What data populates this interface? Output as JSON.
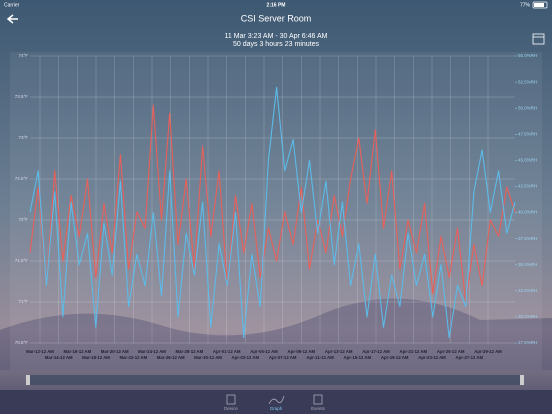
{
  "status_bar": {
    "carrier": "Carrier",
    "time": "2:16 PM",
    "battery": "77%"
  },
  "nav": {
    "title": "CSI Server Room",
    "range": "11 Mar 3:23 AM - 30 Apr 6:46 AM",
    "duration": "50 days 3 hours 23 minutes"
  },
  "chart_data": {
    "type": "line",
    "xticks": [
      "Mar-12-12 AM",
      "Mar-14-12 AM",
      "Mar-16-12 AM",
      "Mar-18-12 AM",
      "Mar-20-12 AM",
      "Mar-22-12 AM",
      "Mar-24-12 AM",
      "Mar-26-12 AM",
      "Mar-28-12 AM",
      "Mar-30-12 AM",
      "Apr-01-12 AM",
      "Apr-03-12 AM",
      "Apr-05-12 AM",
      "Apr-07-12 AM",
      "Apr-09-12 AM",
      "Apr-11-12 AM",
      "Apr-13-12 AM",
      "Apr-15-12 AM",
      "Apr-17-12 AM",
      "Apr-19-12 AM",
      "Apr-21-12 AM",
      "Apr-23-12 AM",
      "Apr-25-12 AM",
      "Apr-27-12 AM",
      "Apr-29-12 AM"
    ],
    "ylim": [
      70.5,
      74
    ],
    "yticks": [
      {
        "value": 74,
        "label": "74°F"
      },
      {
        "value": 73.5,
        "label": "73.5°F"
      },
      {
        "value": 73,
        "label": "73°F"
      },
      {
        "value": 72.5,
        "label": "72.5°F"
      },
      {
        "value": 72,
        "label": "72°F"
      },
      {
        "value": 71.5,
        "label": "71.5°F"
      },
      {
        "value": 71,
        "label": "71°F"
      },
      {
        "value": 70.5,
        "label": "70.5°F"
      }
    ],
    "y2lim": [
      27.5,
      55
    ],
    "y2ticks": [
      {
        "value": 55,
        "label": "55.0%RH"
      },
      {
        "value": 52.5,
        "label": "52.5%RH"
      },
      {
        "value": 50,
        "label": "50.0%RH"
      },
      {
        "value": 47.5,
        "label": "47.5%RH"
      },
      {
        "value": 45,
        "label": "45.0%RH"
      },
      {
        "value": 42.5,
        "label": "42.5%RH"
      },
      {
        "value": 40,
        "label": "40.0%RH"
      },
      {
        "value": 37.5,
        "label": "37.5%RH"
      },
      {
        "value": 35,
        "label": "35.0%RH"
      },
      {
        "value": 32.5,
        "label": "32.5%RH"
      },
      {
        "value": 30,
        "label": "30.0%RH"
      },
      {
        "value": 27.5,
        "label": "27.5%RH"
      }
    ],
    "grid": true,
    "series": [
      {
        "color": "#e8605a",
        "values": [
          71.6,
          72.4,
          71.2,
          72.6,
          71.5,
          72.3,
          71.8,
          72.5,
          71.3,
          72.2,
          71.6,
          72.8,
          71.4,
          72.1,
          71.9,
          73.4,
          72.0,
          73.3,
          71.7,
          72.5,
          71.4,
          72.9,
          71.8,
          72.6,
          71.2,
          72.3,
          71.6,
          72.2,
          71.3,
          71.9,
          71.5,
          72.1,
          71.7,
          72.4,
          71.4,
          72.0,
          71.6,
          72.3,
          71.8,
          72.5,
          73.0,
          72.2,
          73.1,
          71.9,
          72.6,
          71.4,
          72.0,
          71.6,
          72.2,
          71.1,
          71.8,
          71.3,
          71.9,
          71.0,
          71.7,
          71.2,
          72.0,
          71.8,
          72.4,
          72.1
        ]
      },
      {
        "color": "#5cbbe8",
        "axis": "y2",
        "values": [
          40,
          44,
          33,
          42,
          30,
          41,
          35,
          38,
          29,
          39,
          34,
          43,
          31,
          36,
          33,
          40,
          32,
          44,
          30,
          38,
          34,
          41,
          29,
          37,
          33,
          40,
          28,
          36,
          31,
          45,
          52,
          44,
          47,
          40,
          45,
          38,
          43,
          35,
          41,
          33,
          37,
          30,
          36,
          29,
          34,
          31,
          38,
          33,
          36,
          30,
          35,
          28,
          33,
          31,
          42,
          46,
          40,
          44,
          38,
          41
        ]
      }
    ]
  },
  "tabs": [
    "Device",
    "Graph",
    "Events"
  ]
}
